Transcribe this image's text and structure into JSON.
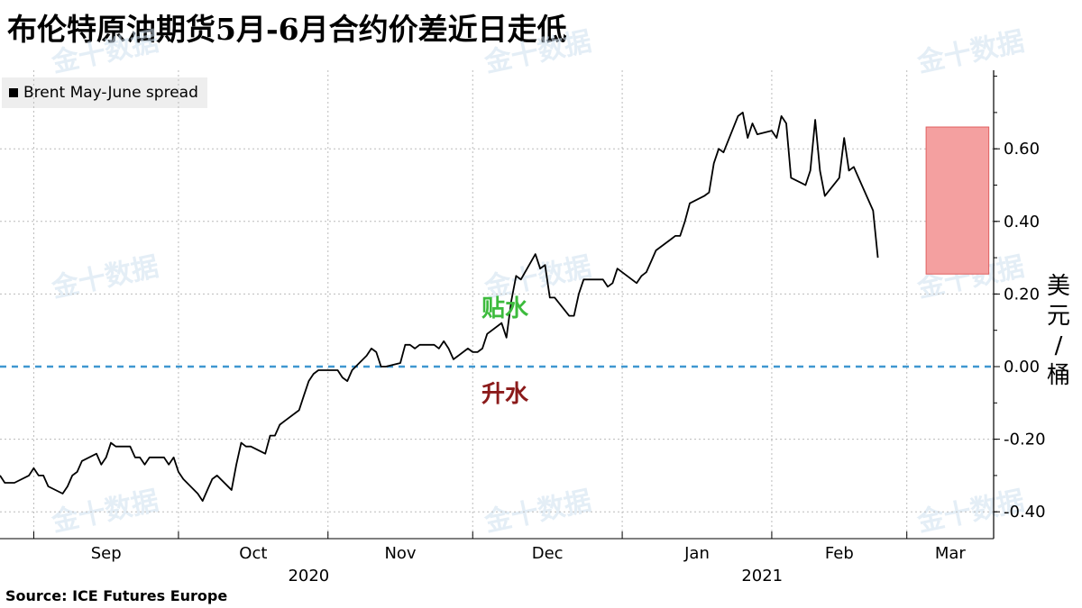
{
  "title": "布伦特原油期货5月-6月合约价差近日走低",
  "legend": {
    "label": "Brent May-June spread",
    "color": "#000000"
  },
  "source": "Source: ICE Futures Europe",
  "unit_chars": [
    "美",
    "元",
    "/",
    "桶"
  ],
  "annotations": {
    "discount": "贴水",
    "premium": "升水"
  },
  "watermark": "金十数据",
  "colors": {
    "line": "#000000",
    "zero_line": "#3f97d0",
    "highlight_fill": "#f4a0a0",
    "highlight_stroke": "#e06060",
    "grid": "#bbbbbb"
  },
  "chart_data": {
    "type": "line",
    "title": "布伦特原油期货5月-6月合约价差近日走低",
    "xlabel": "",
    "ylabel": "美元/桶",
    "ylim": [
      -0.45,
      0.82
    ],
    "y_ticks": [
      -0.4,
      -0.2,
      0.0,
      0.2,
      0.4,
      0.6
    ],
    "y_tick_labels": [
      "-0.40",
      "-0.20",
      "0.00",
      "0.20",
      "0.40",
      "0.60"
    ],
    "x_range": [
      "2020-08-25",
      "2021-03-19"
    ],
    "x_ticks": [
      {
        "date": "2020-09-01",
        "label": "Sep"
      },
      {
        "date": "2020-10-01",
        "label": "Oct"
      },
      {
        "date": "2020-11-01",
        "label": "Nov"
      },
      {
        "date": "2020-12-01",
        "label": "Dec"
      },
      {
        "date": "2021-01-01",
        "label": "Jan"
      },
      {
        "date": "2021-02-01",
        "label": "Feb"
      },
      {
        "date": "2021-03-01",
        "label": "Mar"
      }
    ],
    "year_labels": [
      {
        "date": "2020-10-28",
        "label": "2020"
      },
      {
        "date": "2021-01-30",
        "label": "2021"
      }
    ],
    "grid": true,
    "legend_position": "top-left",
    "reference_line": {
      "y": 0.0,
      "style": "dashed"
    },
    "highlight_box": {
      "x": [
        "2021-03-05",
        "2021-03-18"
      ],
      "y": [
        0.255,
        0.66
      ]
    },
    "series": [
      {
        "name": "Brent May-June spread",
        "points": [
          [
            "2020-08-25",
            -0.3
          ],
          [
            "2020-08-26",
            -0.32
          ],
          [
            "2020-08-27",
            -0.32
          ],
          [
            "2020-08-28",
            -0.32
          ],
          [
            "2020-08-31",
            -0.3
          ],
          [
            "2020-09-01",
            -0.28
          ],
          [
            "2020-09-02",
            -0.3
          ],
          [
            "2020-09-03",
            -0.3
          ],
          [
            "2020-09-04",
            -0.33
          ],
          [
            "2020-09-07",
            -0.35
          ],
          [
            "2020-09-08",
            -0.33
          ],
          [
            "2020-09-09",
            -0.3
          ],
          [
            "2020-09-10",
            -0.29
          ],
          [
            "2020-09-11",
            -0.26
          ],
          [
            "2020-09-14",
            -0.24
          ],
          [
            "2020-09-15",
            -0.27
          ],
          [
            "2020-09-16",
            -0.25
          ],
          [
            "2020-09-17",
            -0.21
          ],
          [
            "2020-09-18",
            -0.22
          ],
          [
            "2020-09-21",
            -0.22
          ],
          [
            "2020-09-22",
            -0.25
          ],
          [
            "2020-09-23",
            -0.25
          ],
          [
            "2020-09-24",
            -0.27
          ],
          [
            "2020-09-25",
            -0.25
          ],
          [
            "2020-09-28",
            -0.25
          ],
          [
            "2020-09-29",
            -0.27
          ],
          [
            "2020-09-30",
            -0.25
          ],
          [
            "2020-10-01",
            -0.29
          ],
          [
            "2020-10-02",
            -0.31
          ],
          [
            "2020-10-05",
            -0.35
          ],
          [
            "2020-10-06",
            -0.37
          ],
          [
            "2020-10-07",
            -0.34
          ],
          [
            "2020-10-08",
            -0.31
          ],
          [
            "2020-10-09",
            -0.3
          ],
          [
            "2020-10-12",
            -0.34
          ],
          [
            "2020-10-13",
            -0.27
          ],
          [
            "2020-10-14",
            -0.21
          ],
          [
            "2020-10-15",
            -0.22
          ],
          [
            "2020-10-16",
            -0.22
          ],
          [
            "2020-10-19",
            -0.24
          ],
          [
            "2020-10-20",
            -0.19
          ],
          [
            "2020-10-21",
            -0.19
          ],
          [
            "2020-10-22",
            -0.16
          ],
          [
            "2020-10-23",
            -0.15
          ],
          [
            "2020-10-26",
            -0.12
          ],
          [
            "2020-10-27",
            -0.08
          ],
          [
            "2020-10-28",
            -0.04
          ],
          [
            "2020-10-29",
            -0.02
          ],
          [
            "2020-10-30",
            -0.01
          ],
          [
            "2020-11-02",
            -0.01
          ],
          [
            "2020-11-03",
            -0.01
          ],
          [
            "2020-11-04",
            -0.03
          ],
          [
            "2020-11-05",
            -0.04
          ],
          [
            "2020-11-06",
            -0.01
          ],
          [
            "2020-11-09",
            0.03
          ],
          [
            "2020-11-10",
            0.05
          ],
          [
            "2020-11-11",
            0.04
          ],
          [
            "2020-11-12",
            0.0
          ],
          [
            "2020-11-13",
            0.0
          ],
          [
            "2020-11-16",
            0.01
          ],
          [
            "2020-11-17",
            0.06
          ],
          [
            "2020-11-18",
            0.06
          ],
          [
            "2020-11-19",
            0.05
          ],
          [
            "2020-11-20",
            0.06
          ],
          [
            "2020-11-23",
            0.06
          ],
          [
            "2020-11-24",
            0.05
          ],
          [
            "2020-11-25",
            0.07
          ],
          [
            "2020-11-26",
            0.05
          ],
          [
            "2020-11-27",
            0.02
          ],
          [
            "2020-11-30",
            0.05
          ],
          [
            "2020-12-01",
            0.04
          ],
          [
            "2020-12-02",
            0.04
          ],
          [
            "2020-12-03",
            0.05
          ],
          [
            "2020-12-04",
            0.09
          ],
          [
            "2020-12-07",
            0.12
          ],
          [
            "2020-12-08",
            0.08
          ],
          [
            "2020-12-09",
            0.18
          ],
          [
            "2020-12-10",
            0.25
          ],
          [
            "2020-12-11",
            0.24
          ],
          [
            "2020-12-14",
            0.31
          ],
          [
            "2020-12-15",
            0.27
          ],
          [
            "2020-12-16",
            0.28
          ],
          [
            "2020-12-17",
            0.19
          ],
          [
            "2020-12-18",
            0.19
          ],
          [
            "2020-12-21",
            0.14
          ],
          [
            "2020-12-22",
            0.14
          ],
          [
            "2020-12-23",
            0.2
          ],
          [
            "2020-12-24",
            0.24
          ],
          [
            "2020-12-28",
            0.24
          ],
          [
            "2020-12-29",
            0.22
          ],
          [
            "2020-12-30",
            0.23
          ],
          [
            "2020-12-31",
            0.27
          ],
          [
            "2021-01-04",
            0.23
          ],
          [
            "2021-01-05",
            0.25
          ],
          [
            "2021-01-06",
            0.26
          ],
          [
            "2021-01-07",
            0.29
          ],
          [
            "2021-01-08",
            0.32
          ],
          [
            "2021-01-11",
            0.35
          ],
          [
            "2021-01-12",
            0.36
          ],
          [
            "2021-01-13",
            0.36
          ],
          [
            "2021-01-14",
            0.4
          ],
          [
            "2021-01-15",
            0.45
          ],
          [
            "2021-01-18",
            0.47
          ],
          [
            "2021-01-19",
            0.48
          ],
          [
            "2021-01-20",
            0.56
          ],
          [
            "2021-01-21",
            0.6
          ],
          [
            "2021-01-22",
            0.59
          ],
          [
            "2021-01-25",
            0.69
          ],
          [
            "2021-01-26",
            0.7
          ],
          [
            "2021-01-27",
            0.63
          ],
          [
            "2021-01-28",
            0.67
          ],
          [
            "2021-01-29",
            0.64
          ],
          [
            "2021-02-01",
            0.65
          ],
          [
            "2021-02-02",
            0.63
          ],
          [
            "2021-02-03",
            0.69
          ],
          [
            "2021-02-04",
            0.67
          ],
          [
            "2021-02-05",
            0.52
          ],
          [
            "2021-02-08",
            0.5
          ],
          [
            "2021-02-09",
            0.54
          ],
          [
            "2021-02-10",
            0.68
          ],
          [
            "2021-02-11",
            0.54
          ],
          [
            "2021-02-12",
            0.47
          ],
          [
            "2021-02-15",
            0.52
          ],
          [
            "2021-02-16",
            0.63
          ],
          [
            "2021-02-17",
            0.54
          ],
          [
            "2021-02-18",
            0.55
          ],
          [
            "2021-02-19",
            0.52
          ],
          [
            "2021-02-22",
            0.43
          ],
          [
            "2021-02-23",
            0.3
          ]
        ]
      }
    ]
  }
}
